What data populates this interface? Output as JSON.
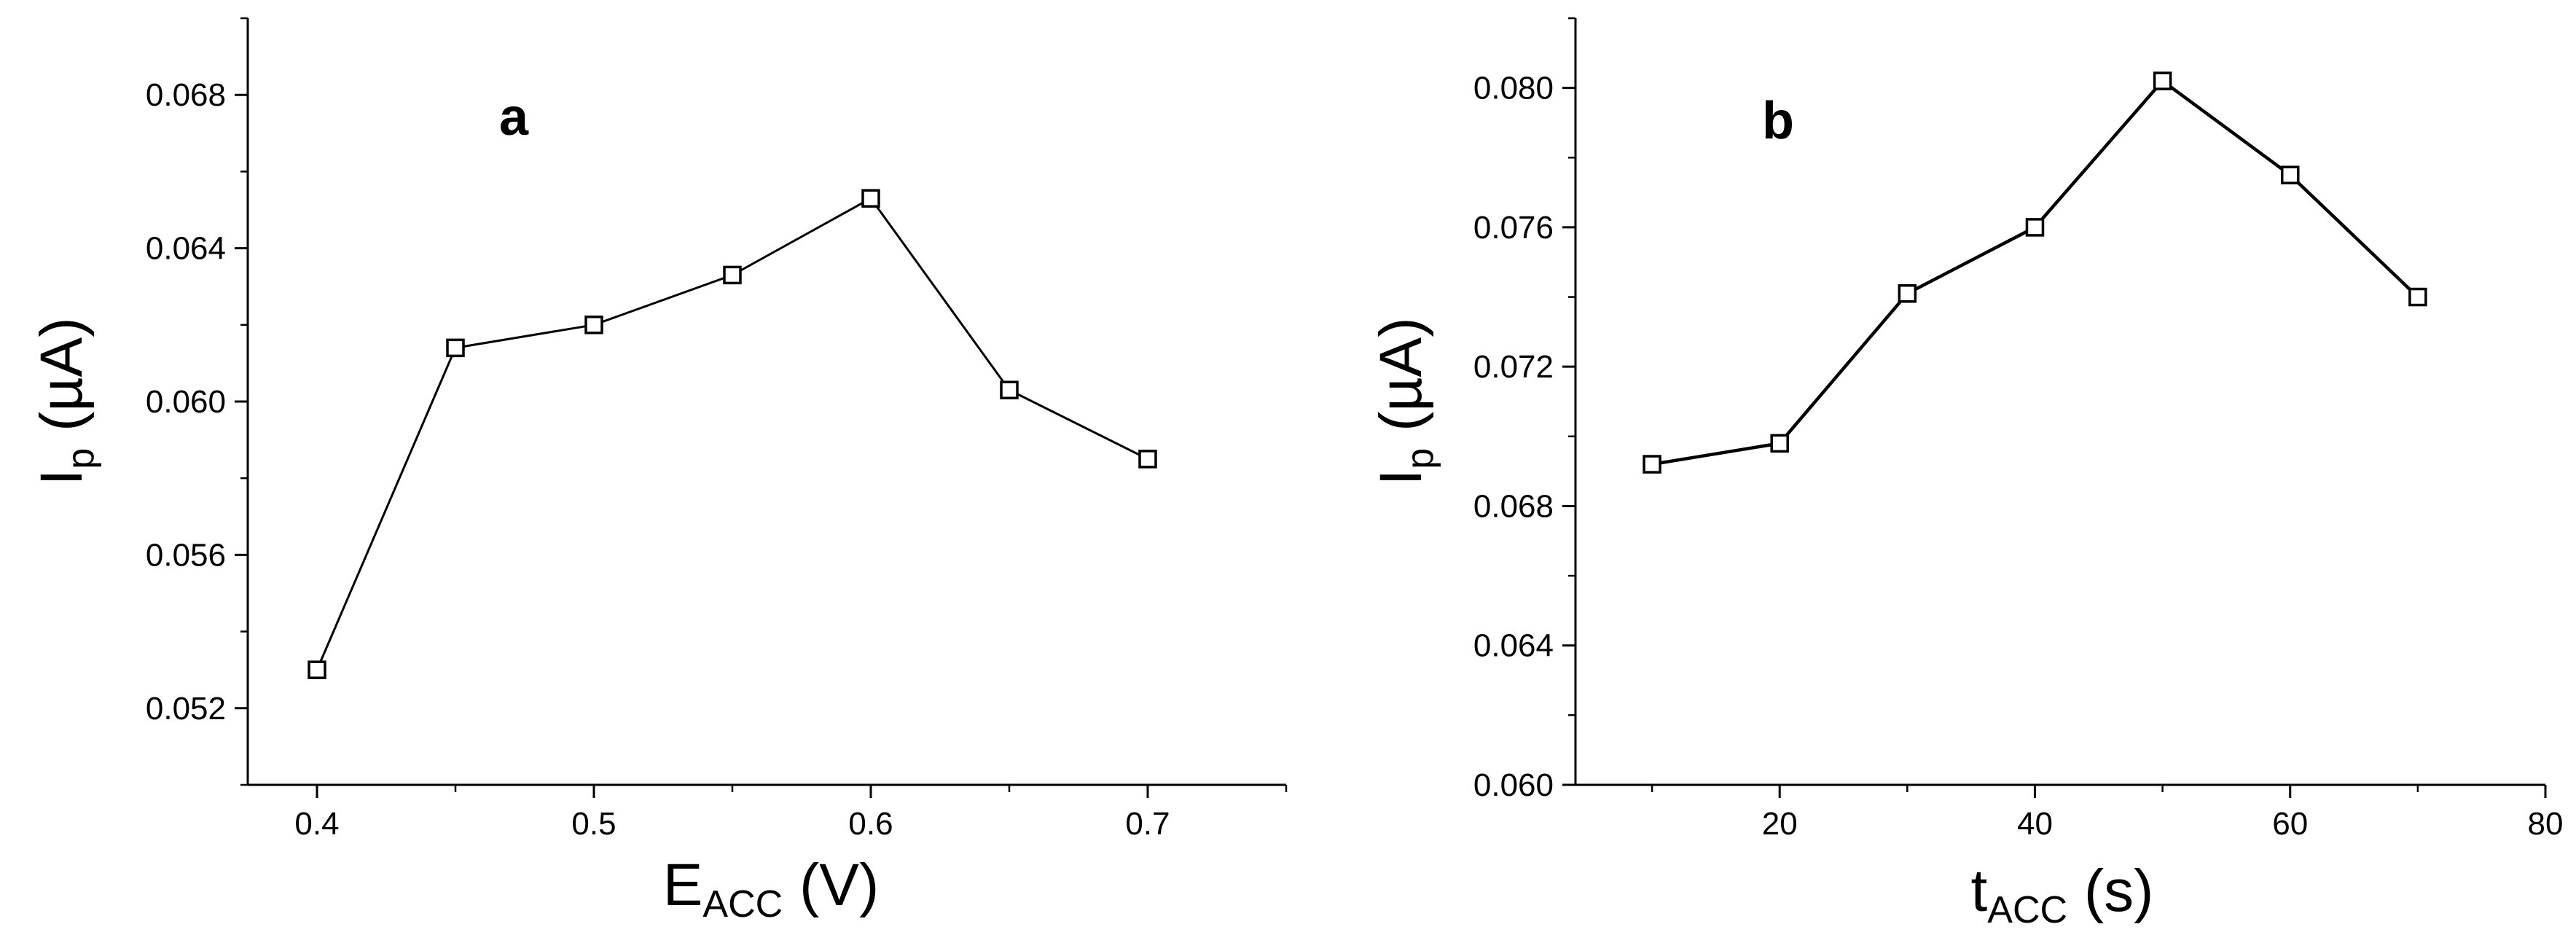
{
  "chart_data": [
    {
      "type": "line",
      "panel_label": "a",
      "x": [
        0.4,
        0.45,
        0.5,
        0.55,
        0.6,
        0.65,
        0.7
      ],
      "series": [
        {
          "values": [
            0.053,
            0.0614,
            0.062,
            0.0633,
            0.0653,
            0.0603,
            0.0585
          ]
        }
      ],
      "marker": "open-square",
      "xlim": [
        0.375,
        0.75
      ],
      "ylim": [
        0.05,
        0.07
      ],
      "xticks": [
        0.4,
        0.5,
        0.6,
        0.7
      ],
      "xtick_labels": [
        "0.4",
        "0.5",
        "0.6",
        "0.7"
      ],
      "yticks": [
        0.052,
        0.056,
        0.06,
        0.064,
        0.068
      ],
      "ytick_labels": [
        "0.052",
        "0.056",
        "0.060",
        "0.064",
        "0.068"
      ],
      "xlabel_main": "E",
      "xlabel_sub": "ACC",
      "xlabel_unit": " (V)",
      "ylabel_main": "I",
      "ylabel_sub": "p",
      "ylabel_unit": " (µA)",
      "grid": false,
      "color": "#000000"
    },
    {
      "type": "line",
      "panel_label": "b",
      "x": [
        10,
        20,
        30,
        40,
        50,
        60,
        70
      ],
      "series": [
        {
          "values": [
            0.0692,
            0.0698,
            0.0741,
            0.076,
            0.0802,
            0.0775,
            0.074
          ]
        }
      ],
      "marker": "open-square",
      "xlim": [
        4,
        80
      ],
      "ylim": [
        0.06,
        0.082
      ],
      "xticks": [
        20,
        40,
        60,
        80
      ],
      "xtick_labels": [
        "20",
        "40",
        "60",
        "80"
      ],
      "yticks": [
        0.06,
        0.064,
        0.068,
        0.072,
        0.076,
        0.08
      ],
      "ytick_labels": [
        "0.060",
        "0.064",
        "0.068",
        "0.072",
        "0.076",
        "0.080"
      ],
      "xlabel_main": "t",
      "xlabel_sub": "ACC",
      "xlabel_unit": " (s)",
      "ylabel_main": "I",
      "ylabel_sub": "p",
      "ylabel_unit": " (µA)",
      "grid": false,
      "color": "#000000"
    }
  ]
}
